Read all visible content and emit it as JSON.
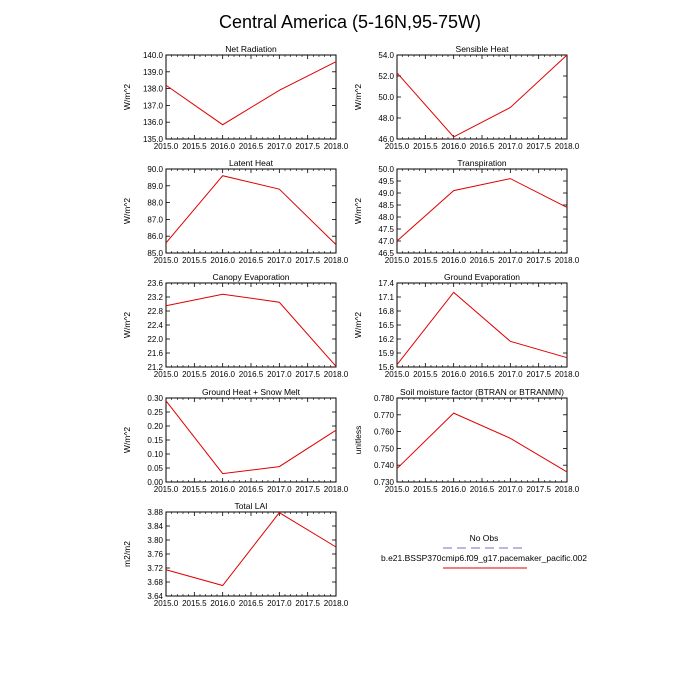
{
  "figure": {
    "title": "Central America (5-16N,95-75W)"
  },
  "legend": {
    "obs_label": "No Obs",
    "model_label": "b.e21.BSSP370cmip6.f09_g17.pacemaker_pacific.002",
    "obs_color": "#b8b8e0",
    "model_color": "#e00000"
  },
  "chart_data": [
    {
      "type": "line",
      "title": "Net Radiation",
      "ylabel": "W/m^2",
      "x": [
        2015.0,
        2016.0,
        2017.0,
        2018.0
      ],
      "xlim": [
        2015.0,
        2018.0
      ],
      "xticks": [
        "2015.0",
        "2015.5",
        "2016.0",
        "2016.5",
        "2017.0",
        "2017.5",
        "2018.0"
      ],
      "ylim": [
        135.0,
        140.0
      ],
      "yticks": [
        "135.0",
        "136.0",
        "137.0",
        "138.0",
        "139.0",
        "140.0"
      ],
      "series": [
        {
          "name": "b.e21.BSSP370cmip6.f09_g17.pacemaker_pacific.002",
          "values": [
            138.2,
            135.85,
            137.9,
            139.6
          ]
        }
      ]
    },
    {
      "type": "line",
      "title": "Sensible Heat",
      "ylabel": "W/m^2",
      "x": [
        2015.0,
        2016.0,
        2017.0,
        2018.0
      ],
      "xlim": [
        2015.0,
        2018.0
      ],
      "xticks": [
        "2015.0",
        "2015.5",
        "2016.0",
        "2016.5",
        "2017.0",
        "2017.5",
        "2018.0"
      ],
      "ylim": [
        46.0,
        54.0
      ],
      "yticks": [
        "46.0",
        "48.0",
        "50.0",
        "52.0",
        "54.0"
      ],
      "series": [
        {
          "name": "b.e21.BSSP370cmip6.f09_g17.pacemaker_pacific.002",
          "values": [
            52.3,
            46.2,
            49.0,
            54.0
          ]
        }
      ]
    },
    {
      "type": "line",
      "title": "Latent Heat",
      "ylabel": "W/m^2",
      "x": [
        2015.0,
        2016.0,
        2017.0,
        2018.0
      ],
      "xlim": [
        2015.0,
        2018.0
      ],
      "xticks": [
        "2015.0",
        "2015.5",
        "2016.0",
        "2016.5",
        "2017.0",
        "2017.5",
        "2018.0"
      ],
      "ylim": [
        85.0,
        90.0
      ],
      "yticks": [
        "85.0",
        "86.0",
        "87.0",
        "88.0",
        "89.0",
        "90.0"
      ],
      "series": [
        {
          "name": "b.e21.BSSP370cmip6.f09_g17.pacemaker_pacific.002",
          "values": [
            85.6,
            89.6,
            88.8,
            85.5
          ]
        }
      ]
    },
    {
      "type": "line",
      "title": "Transpiration",
      "ylabel": "W/m^2",
      "x": [
        2015.0,
        2016.0,
        2017.0,
        2018.0
      ],
      "xlim": [
        2015.0,
        2018.0
      ],
      "xticks": [
        "2015.0",
        "2015.5",
        "2016.0",
        "2016.5",
        "2017.0",
        "2017.5",
        "2018.0"
      ],
      "ylim": [
        46.5,
        50.0
      ],
      "yticks": [
        "46.5",
        "47.0",
        "47.5",
        "48.0",
        "48.5",
        "49.0",
        "49.5",
        "50.0"
      ],
      "series": [
        {
          "name": "b.e21.BSSP370cmip6.f09_g17.pacemaker_pacific.002",
          "values": [
            47.0,
            49.1,
            49.6,
            48.4
          ]
        }
      ]
    },
    {
      "type": "line",
      "title": "Canopy Evaporation",
      "ylabel": "W/m^2",
      "x": [
        2015.0,
        2016.0,
        2017.0,
        2018.0
      ],
      "xlim": [
        2015.0,
        2018.0
      ],
      "xticks": [
        "2015.0",
        "2015.5",
        "2016.0",
        "2016.5",
        "2017.0",
        "2017.5",
        "2018.0"
      ],
      "ylim": [
        21.2,
        23.6
      ],
      "yticks": [
        "21.2",
        "21.6",
        "22.0",
        "22.4",
        "22.8",
        "23.2",
        "23.6"
      ],
      "series": [
        {
          "name": "b.e21.BSSP370cmip6.f09_g17.pacemaker_pacific.002",
          "values": [
            22.95,
            23.28,
            23.05,
            21.22
          ]
        }
      ]
    },
    {
      "type": "line",
      "title": "Ground Evaporation",
      "ylabel": "W/m^2",
      "x": [
        2015.0,
        2016.0,
        2017.0,
        2018.0
      ],
      "xlim": [
        2015.0,
        2018.0
      ],
      "xticks": [
        "2015.0",
        "2015.5",
        "2016.0",
        "2016.5",
        "2017.0",
        "2017.5",
        "2018.0"
      ],
      "ylim": [
        15.6,
        17.4
      ],
      "yticks": [
        "15.6",
        "15.9",
        "16.2",
        "16.5",
        "16.8",
        "17.1",
        "17.4"
      ],
      "series": [
        {
          "name": "b.e21.BSSP370cmip6.f09_g17.pacemaker_pacific.002",
          "values": [
            15.65,
            17.2,
            16.15,
            15.8
          ]
        }
      ]
    },
    {
      "type": "line",
      "title": "Ground Heat + Snow Melt",
      "ylabel": "W/m^2",
      "x": [
        2015.0,
        2016.0,
        2017.0,
        2018.0
      ],
      "xlim": [
        2015.0,
        2018.0
      ],
      "xticks": [
        "2015.0",
        "2015.5",
        "2016.0",
        "2016.5",
        "2017.0",
        "2017.5",
        "2018.0"
      ],
      "ylim": [
        0.0,
        0.3
      ],
      "yticks": [
        "0.00",
        "0.05",
        "0.10",
        "0.15",
        "0.20",
        "0.25",
        "0.30"
      ],
      "series": [
        {
          "name": "b.e21.BSSP370cmip6.f09_g17.pacemaker_pacific.002",
          "values": [
            0.29,
            0.03,
            0.055,
            0.185
          ]
        }
      ]
    },
    {
      "type": "line",
      "title": "Soil moisture factor (BTRAN or BTRANMN)",
      "ylabel": "unitless",
      "x": [
        2015.0,
        2016.0,
        2017.0,
        2018.0
      ],
      "xlim": [
        2015.0,
        2018.0
      ],
      "xticks": [
        "2015.0",
        "2015.5",
        "2016.0",
        "2016.5",
        "2017.0",
        "2017.5",
        "2018.0"
      ],
      "ylim": [
        0.73,
        0.78
      ],
      "yticks": [
        "0.730",
        "0.740",
        "0.750",
        "0.760",
        "0.770",
        "0.780"
      ],
      "series": [
        {
          "name": "b.e21.BSSP370cmip6.f09_g17.pacemaker_pacific.002",
          "values": [
            0.738,
            0.771,
            0.756,
            0.736
          ]
        }
      ]
    },
    {
      "type": "line",
      "title": "Total LAI",
      "ylabel": "m2/m2",
      "x": [
        2015.0,
        2016.0,
        2017.0,
        2018.0
      ],
      "xlim": [
        2015.0,
        2018.0
      ],
      "xticks": [
        "2015.0",
        "2015.5",
        "2016.0",
        "2016.5",
        "2017.0",
        "2017.5",
        "2018.0"
      ],
      "ylim": [
        3.64,
        3.88
      ],
      "yticks": [
        "3.64",
        "3.68",
        "3.72",
        "3.76",
        "3.80",
        "3.84",
        "3.88"
      ],
      "series": [
        {
          "name": "b.e21.BSSP370cmip6.f09_g17.pacemaker_pacific.002",
          "values": [
            3.715,
            3.67,
            3.878,
            3.78
          ]
        }
      ]
    }
  ]
}
